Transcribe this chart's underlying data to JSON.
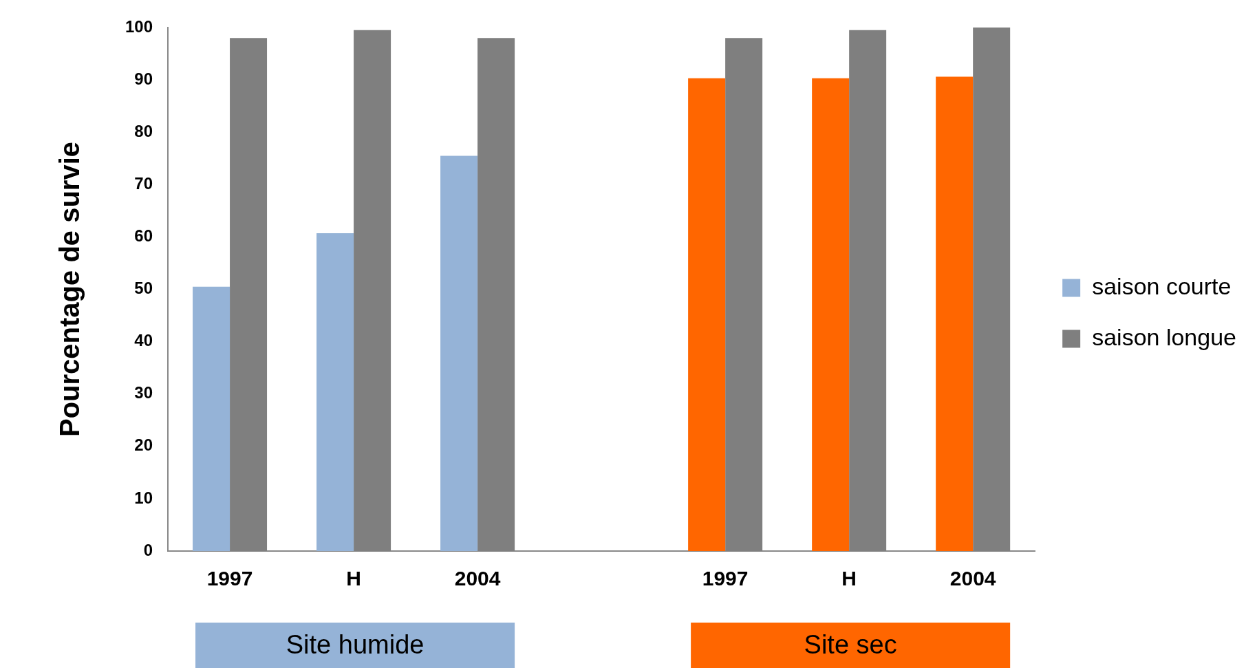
{
  "chart_data": {
    "type": "bar",
    "ylabel": "Pourcentage de survie",
    "categories": [
      "1997",
      "H",
      "2004",
      null,
      "1997",
      "H",
      "2004"
    ],
    "series": [
      {
        "name": "saison courte",
        "colors": [
          "#95b3d7",
          "#95b3d7",
          "#95b3d7",
          null,
          "#ff6600",
          "#ff6600",
          "#ff6600"
        ],
        "values": [
          50.5,
          60.7,
          75.5,
          null,
          90.3,
          90.3,
          90.6
        ]
      },
      {
        "name": "saison longue",
        "color": "#7f7f7f",
        "values": [
          98,
          99.5,
          98,
          null,
          98,
          99.5,
          100
        ]
      }
    ],
    "ylim": [
      0,
      100
    ],
    "yticks": [
      0,
      10,
      20,
      30,
      40,
      50,
      60,
      70,
      80,
      90,
      100
    ],
    "grid": false,
    "legend": "right",
    "annotations": [
      "Site humide",
      "Site sec"
    ]
  }
}
